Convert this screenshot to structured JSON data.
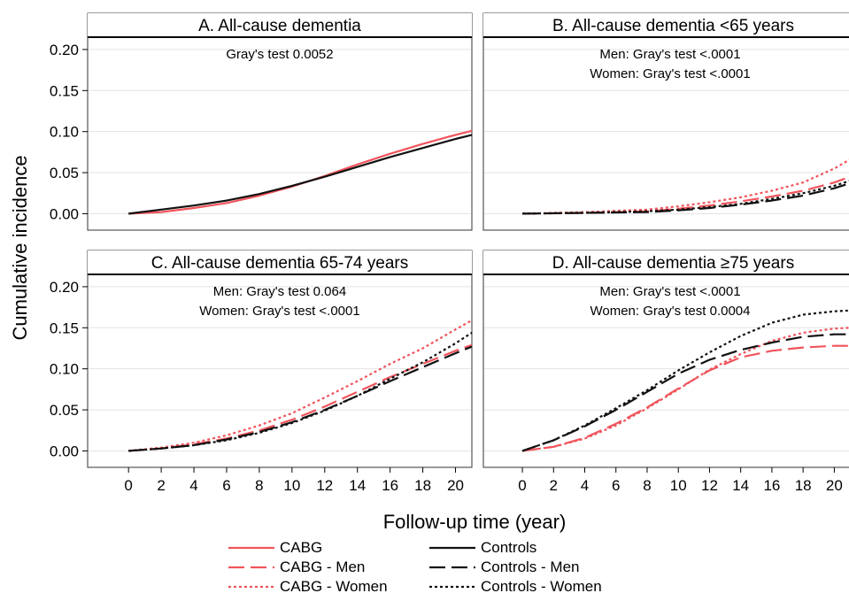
{
  "y_axis_label": "Cumulative incidence",
  "x_axis_label": "Follow-up time (year)",
  "colors": {
    "cabg": "#f0545c",
    "controls": "#111111"
  },
  "legend": [
    {
      "label": "CABG",
      "color": "#f0545c",
      "style": "solid"
    },
    {
      "label": "Controls",
      "color": "#111111",
      "style": "solid"
    },
    {
      "label": "CABG - Men",
      "color": "#f0545c",
      "style": "long-dash"
    },
    {
      "label": "Controls - Men",
      "color": "#111111",
      "style": "long-dash"
    },
    {
      "label": "CABG - Women",
      "color": "#f0545c",
      "style": "dotted"
    },
    {
      "label": "Controls - Women",
      "color": "#111111",
      "style": "dotted"
    }
  ],
  "chart_data": [
    {
      "type": "line",
      "title": "A. All-cause dementia",
      "annotations": [
        "Gray's test 0.0052"
      ],
      "x_ticks": [
        0,
        2,
        4,
        6,
        8,
        10,
        12,
        14,
        16,
        18,
        20
      ],
      "y_ticks": [
        "0.00",
        "0.05",
        "0.10",
        "0.15",
        "0.20"
      ],
      "xlim": [
        -2.5,
        21
      ],
      "ylim": [
        -0.02,
        0.215
      ],
      "grid": true,
      "series": [
        {
          "name": "CABG",
          "color": "#f0545c",
          "style": "solid",
          "x": [
            0,
            2,
            4,
            6,
            8,
            10,
            12,
            14,
            16,
            18,
            20,
            21
          ],
          "y": [
            0,
            0.002,
            0.007,
            0.013,
            0.022,
            0.033,
            0.046,
            0.06,
            0.073,
            0.085,
            0.096,
            0.101
          ]
        },
        {
          "name": "Controls",
          "color": "#111111",
          "style": "solid",
          "x": [
            0,
            2,
            4,
            6,
            8,
            10,
            12,
            14,
            16,
            18,
            20,
            21
          ],
          "y": [
            0,
            0.005,
            0.01,
            0.016,
            0.024,
            0.034,
            0.045,
            0.057,
            0.069,
            0.08,
            0.091,
            0.096
          ]
        }
      ]
    },
    {
      "type": "line",
      "title": "B. All-cause dementia <65 years",
      "annotations": [
        "Men: Gray's test <.0001",
        "Women: Gray's test <.0001"
      ],
      "x_ticks": [
        0,
        2,
        4,
        6,
        8,
        10,
        12,
        14,
        16,
        18,
        20
      ],
      "y_ticks": [
        "0.00",
        "0.05",
        "0.10",
        "0.15",
        "0.20"
      ],
      "xlim": [
        -2.5,
        21
      ],
      "ylim": [
        -0.02,
        0.215
      ],
      "grid": true,
      "series": [
        {
          "name": "CABG - Men",
          "color": "#f0545c",
          "style": "long-dash",
          "x": [
            0,
            4,
            8,
            10,
            12,
            14,
            16,
            18,
            20,
            21
          ],
          "y": [
            0,
            0.001,
            0.003,
            0.006,
            0.01,
            0.015,
            0.021,
            0.028,
            0.038,
            0.045
          ]
        },
        {
          "name": "CABG - Women",
          "color": "#f0545c",
          "style": "dotted",
          "x": [
            0,
            4,
            8,
            10,
            12,
            14,
            16,
            18,
            20,
            21
          ],
          "y": [
            0,
            0.002,
            0.005,
            0.009,
            0.014,
            0.02,
            0.028,
            0.038,
            0.055,
            0.066
          ]
        },
        {
          "name": "Controls - Men",
          "color": "#111111",
          "style": "long-dash",
          "x": [
            0,
            4,
            8,
            10,
            12,
            14,
            16,
            18,
            20,
            21
          ],
          "y": [
            0,
            0.001,
            0.002,
            0.004,
            0.007,
            0.011,
            0.016,
            0.022,
            0.031,
            0.037
          ]
        },
        {
          "name": "Controls - Women",
          "color": "#111111",
          "style": "dotted",
          "x": [
            0,
            4,
            8,
            10,
            12,
            14,
            16,
            18,
            20,
            21
          ],
          "y": [
            0,
            0.001,
            0.003,
            0.005,
            0.008,
            0.012,
            0.018,
            0.025,
            0.034,
            0.04
          ]
        }
      ]
    },
    {
      "type": "line",
      "title": "C. All-cause dementia 65-74 years",
      "annotations": [
        "Men: Gray's test 0.064",
        "Women: Gray's test <.0001"
      ],
      "x_ticks": [
        0,
        2,
        4,
        6,
        8,
        10,
        12,
        14,
        16,
        18,
        20
      ],
      "y_ticks": [
        "0.00",
        "0.05",
        "0.10",
        "0.15",
        "0.20"
      ],
      "xlim": [
        -2.5,
        21
      ],
      "ylim": [
        -0.02,
        0.215
      ],
      "grid": true,
      "series": [
        {
          "name": "CABG - Men",
          "color": "#f0545c",
          "style": "long-dash",
          "x": [
            0,
            2,
            4,
            6,
            8,
            10,
            12,
            14,
            16,
            18,
            20,
            21
          ],
          "y": [
            0,
            0.003,
            0.008,
            0.015,
            0.025,
            0.038,
            0.054,
            0.072,
            0.09,
            0.106,
            0.122,
            0.129
          ]
        },
        {
          "name": "CABG - Women",
          "color": "#f0545c",
          "style": "dotted",
          "x": [
            0,
            2,
            4,
            6,
            8,
            10,
            12,
            14,
            16,
            18,
            20,
            21
          ],
          "y": [
            0,
            0.004,
            0.01,
            0.019,
            0.031,
            0.046,
            0.065,
            0.085,
            0.106,
            0.125,
            0.148,
            0.159
          ]
        },
        {
          "name": "Controls - Men",
          "color": "#111111",
          "style": "long-dash",
          "x": [
            0,
            2,
            4,
            6,
            8,
            10,
            12,
            14,
            16,
            18,
            20,
            21
          ],
          "y": [
            0,
            0.003,
            0.007,
            0.014,
            0.023,
            0.035,
            0.05,
            0.067,
            0.085,
            0.102,
            0.119,
            0.127
          ]
        },
        {
          "name": "Controls - Women",
          "color": "#111111",
          "style": "dotted",
          "x": [
            0,
            2,
            4,
            6,
            8,
            10,
            12,
            14,
            16,
            18,
            20,
            21
          ],
          "y": [
            0,
            0.003,
            0.007,
            0.013,
            0.022,
            0.034,
            0.049,
            0.067,
            0.088,
            0.108,
            0.131,
            0.144
          ]
        }
      ]
    },
    {
      "type": "line",
      "title": "D. All-cause dementia ≥75 years",
      "annotations": [
        "Men: Gray's test <.0001",
        "Women: Gray's test 0.0004"
      ],
      "x_ticks": [
        0,
        2,
        4,
        6,
        8,
        10,
        12,
        14,
        16,
        18,
        20
      ],
      "y_ticks": [
        "0.00",
        "0.05",
        "0.10",
        "0.15",
        "0.20"
      ],
      "xlim": [
        -2.5,
        21
      ],
      "ylim": [
        -0.02,
        0.215
      ],
      "grid": true,
      "series": [
        {
          "name": "CABG - Men",
          "color": "#f0545c",
          "style": "long-dash",
          "x": [
            0,
            2,
            4,
            6,
            8,
            10,
            12,
            14,
            16,
            18,
            20,
            21
          ],
          "y": [
            0,
            0.005,
            0.016,
            0.033,
            0.053,
            0.076,
            0.098,
            0.114,
            0.122,
            0.126,
            0.128,
            0.128
          ]
        },
        {
          "name": "CABG - Women",
          "color": "#f0545c",
          "style": "dotted",
          "x": [
            0,
            2,
            4,
            6,
            8,
            10,
            12,
            14,
            16,
            18,
            20,
            21
          ],
          "y": [
            0,
            0.005,
            0.015,
            0.031,
            0.052,
            0.075,
            0.099,
            0.118,
            0.134,
            0.144,
            0.149,
            0.15
          ]
        },
        {
          "name": "Controls - Men",
          "color": "#111111",
          "style": "long-dash",
          "x": [
            0,
            2,
            4,
            6,
            8,
            10,
            12,
            14,
            16,
            18,
            20,
            21
          ],
          "y": [
            0,
            0.013,
            0.03,
            0.05,
            0.072,
            0.094,
            0.111,
            0.123,
            0.132,
            0.139,
            0.142,
            0.142
          ]
        },
        {
          "name": "Controls - Women",
          "color": "#111111",
          "style": "dotted",
          "x": [
            0,
            2,
            4,
            6,
            8,
            10,
            12,
            14,
            16,
            18,
            20,
            21
          ],
          "y": [
            0,
            0.013,
            0.031,
            0.052,
            0.074,
            0.098,
            0.12,
            0.14,
            0.156,
            0.166,
            0.17,
            0.171
          ]
        }
      ]
    }
  ]
}
